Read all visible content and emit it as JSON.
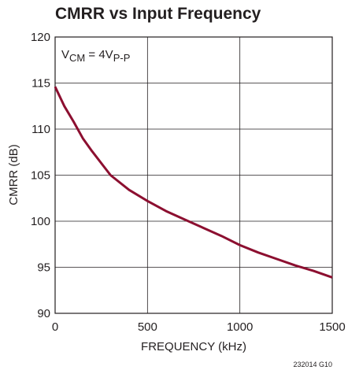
{
  "chart_data": {
    "type": "line",
    "title": "CMRR vs Input Frequency",
    "xlabel": "FREQUENCY (kHz)",
    "ylabel": "CMRR (dB)",
    "annotation": [
      "V",
      "CM",
      " = 4V",
      "P-P"
    ],
    "footnote": "232014 G10",
    "x": [
      0,
      50,
      100,
      150,
      200,
      300,
      400,
      500,
      600,
      700,
      800,
      900,
      1000,
      1100,
      1200,
      1300,
      1400,
      1500
    ],
    "series": [
      {
        "name": "CMRR",
        "color": "#8c0f30",
        "values": [
          114.6,
          112.5,
          110.8,
          109.0,
          107.6,
          105.0,
          103.4,
          102.2,
          101.1,
          100.2,
          99.3,
          98.4,
          97.4,
          96.6,
          95.9,
          95.2,
          94.6,
          93.9
        ]
      }
    ],
    "xlim": [
      0,
      1500
    ],
    "xticks": [
      0,
      500,
      1000,
      1500
    ],
    "ylim": [
      90,
      120
    ],
    "yticks": [
      90,
      95,
      100,
      105,
      110,
      115,
      120
    ],
    "grid": true
  }
}
